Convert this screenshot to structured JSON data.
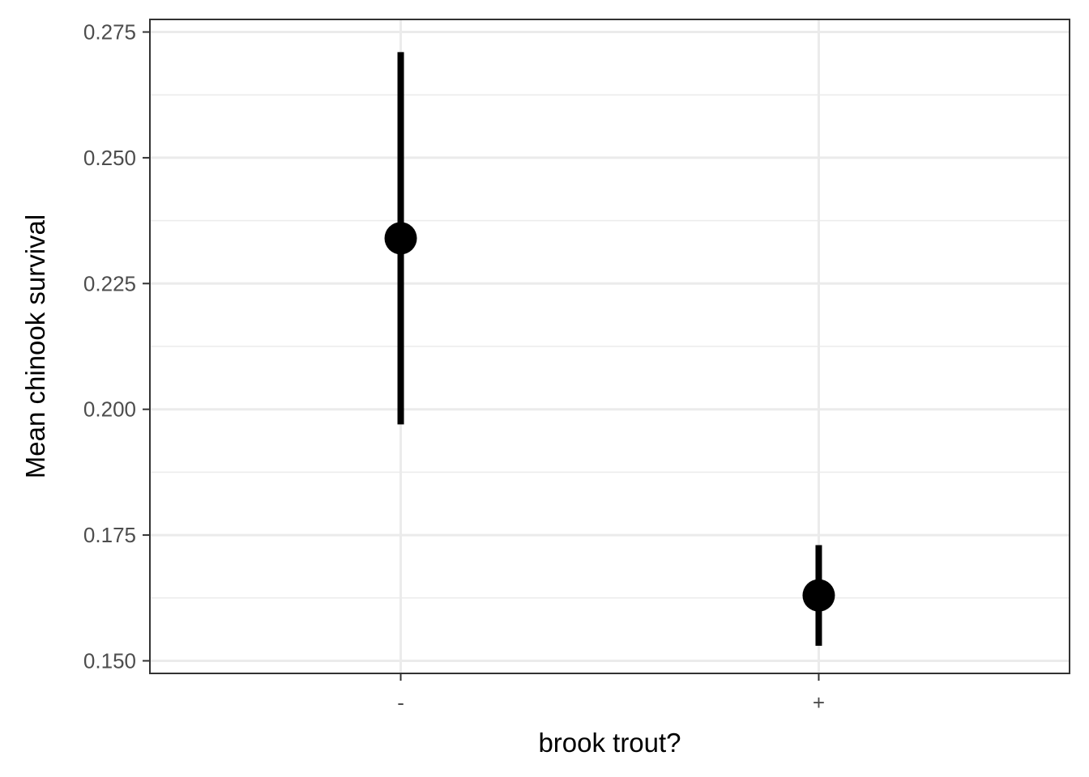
{
  "chart_data": {
    "type": "scatter",
    "subtype": "point-with-errorbars",
    "title": "",
    "xlabel": "brook trout?",
    "ylabel": "Mean chinook survival",
    "categories": [
      "-",
      "+"
    ],
    "points": [
      {
        "category": "-",
        "mean": 0.234,
        "lower": 0.197,
        "upper": 0.271
      },
      {
        "category": "+",
        "mean": 0.163,
        "lower": 0.153,
        "upper": 0.173
      }
    ],
    "ylim": [
      0.1475,
      0.2775
    ],
    "y_ticks": [
      0.15,
      0.175,
      0.2,
      0.225,
      0.25,
      0.275
    ],
    "y_tick_labels": [
      "0.150",
      "0.175",
      "0.200",
      "0.225",
      "0.250",
      "0.275"
    ],
    "grid": true,
    "legend": "none",
    "colors": {
      "point": "#000000",
      "grid": "#ebebeb",
      "panel_border": "#333333",
      "tick_text": "#4d4d4d"
    }
  }
}
